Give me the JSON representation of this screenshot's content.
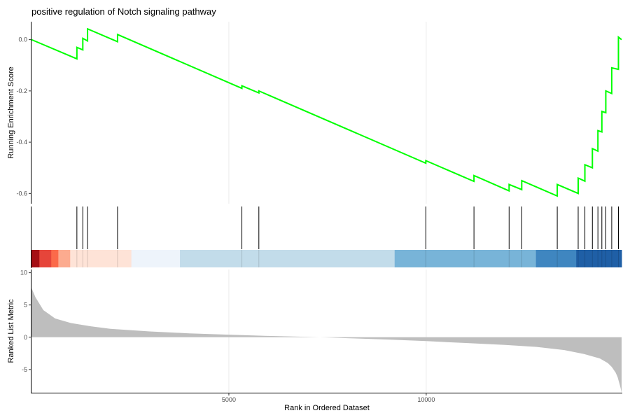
{
  "chart_data": {
    "title": "positive regulation of Notch signaling pathway",
    "xlabel": "Rank in Ordered Dataset",
    "xlim": [
      0,
      14950
    ],
    "x_ticks": [
      5000,
      10000
    ],
    "x_tick_labels": [
      "5000",
      "10000"
    ],
    "grid": true,
    "panels": [
      {
        "type": "line",
        "name": "running-es",
        "ylabel": "Running Enrichment Score",
        "ylim": [
          -0.64,
          0.07
        ],
        "y_ticks": [
          0.0,
          -0.2,
          -0.4,
          -0.6
        ],
        "y_tick_labels": [
          "0.0",
          "-0.2",
          "-0.4",
          "-0.6"
        ],
        "line_color": "#00ff00",
        "series": [
          {
            "x": [
              0,
              1150,
              1150,
              1300,
              1300,
              1420,
              1420,
              2180,
              2180,
              5330,
              5330,
              5760,
              5760,
              9990,
              9990,
              11210,
              11210,
              12100,
              12100,
              12420,
              12420,
              13320,
              13320,
              13850,
              13850,
              14020,
              14020,
              14210,
              14210,
              14350,
              14350,
              14450,
              14450,
              14550,
              14550,
              14700,
              14700,
              14870,
              14870,
              14950
            ],
            "y": [
              0.0,
              -0.075,
              -0.03,
              -0.04,
              0.005,
              -0.005,
              0.042,
              -0.008,
              0.02,
              -0.19,
              -0.18,
              -0.208,
              -0.2,
              -0.482,
              -0.472,
              -0.553,
              -0.53,
              -0.59,
              -0.565,
              -0.585,
              -0.55,
              -0.61,
              -0.565,
              -0.6,
              -0.54,
              -0.552,
              -0.488,
              -0.5,
              -0.425,
              -0.435,
              -0.355,
              -0.36,
              -0.28,
              -0.285,
              -0.2,
              -0.21,
              -0.11,
              -0.116,
              0.01,
              0.0
            ]
          }
        ]
      },
      {
        "type": "rug",
        "name": "gene-hits",
        "hits": [
          1150,
          1300,
          1420,
          2180,
          5330,
          5760,
          9990,
          11210,
          12100,
          12420,
          13320,
          13850,
          14020,
          14210,
          14350,
          14450,
          14550,
          14700,
          14870
        ]
      },
      {
        "type": "heatmap",
        "name": "rank-color-band",
        "segments": [
          {
            "x0": 0,
            "x1": 200,
            "color": "#a50f15"
          },
          {
            "x0": 200,
            "x1": 500,
            "color": "#e6453a"
          },
          {
            "x0": 500,
            "x1": 680,
            "color": "#fb6a4a"
          },
          {
            "x0": 680,
            "x1": 980,
            "color": "#fcab8f"
          },
          {
            "x0": 980,
            "x1": 2530,
            "color": "#fee3d7"
          },
          {
            "x0": 2530,
            "x1": 3760,
            "color": "#eef4fb"
          },
          {
            "x0": 3760,
            "x1": 9200,
            "color": "#c2dcea"
          },
          {
            "x0": 9200,
            "x1": 12780,
            "color": "#78b4d8"
          },
          {
            "x0": 12780,
            "x1": 13800,
            "color": "#3f86c0"
          },
          {
            "x0": 13800,
            "x1": 14950,
            "color": "#1f5fa6"
          }
        ]
      },
      {
        "type": "area",
        "name": "ranked-list-metric",
        "ylabel": "Ranked List Metric",
        "ylim": [
          -8.6,
          10.5
        ],
        "y_ticks": [
          10,
          5,
          0,
          -5
        ],
        "y_tick_labels": [
          "10",
          "5",
          "0",
          "-5"
        ],
        "fill_color": "#bebebe",
        "series": [
          {
            "x": [
              0,
              30,
              100,
              300,
              600,
              1000,
              1500,
              2000,
              3000,
              4000,
              5000,
              6000,
              7000,
              7300,
              7600,
              8000,
              9000,
              10000,
              11000,
              12000,
              12800,
              13500,
              14000,
              14400,
              14600,
              14700,
              14800,
              14850,
              14900,
              14930,
              14950
            ],
            "y": [
              7.6,
              7.2,
              6.2,
              4.2,
              2.9,
              2.2,
              1.7,
              1.3,
              0.9,
              0.6,
              0.4,
              0.2,
              0.05,
              0.0,
              -0.05,
              -0.15,
              -0.35,
              -0.6,
              -0.9,
              -1.2,
              -1.5,
              -2.0,
              -2.6,
              -3.3,
              -4.0,
              -4.6,
              -5.5,
              -6.2,
              -7.3,
              -8.0,
              -8.6
            ]
          }
        ]
      }
    ]
  }
}
